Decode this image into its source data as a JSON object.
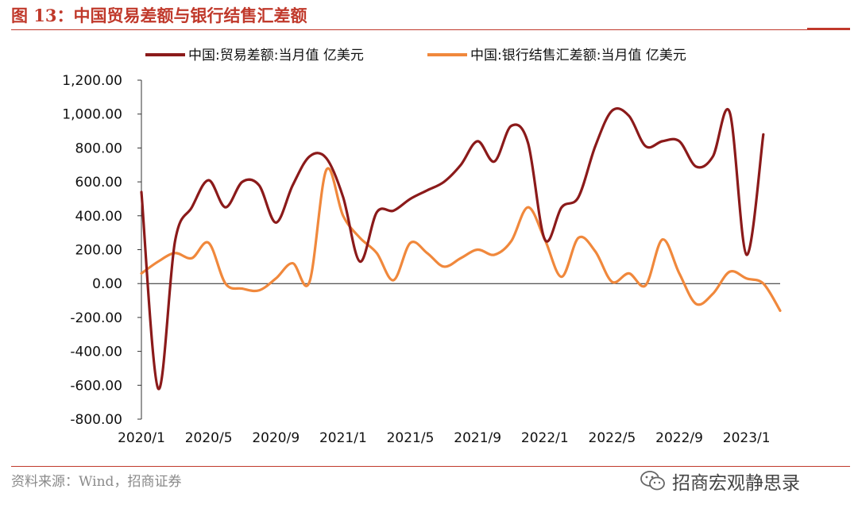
{
  "header": {
    "title": "图 13：中国贸易差额与银行结售汇差额"
  },
  "footer": {
    "source": "资料来源：Wind，招商证券",
    "watermark": "招商宏观静思录"
  },
  "colors": {
    "accent": "#c0392b",
    "series_trade": "#8b1a1a",
    "series_fx": "#f0883c"
  },
  "chart_data": {
    "type": "line",
    "title": "",
    "xlabel": "",
    "ylabel": "",
    "ylim": [
      -800,
      1200
    ],
    "y_ticks": [
      "1,200.00",
      "1,000.00",
      "800.00",
      "600.00",
      "400.00",
      "200.00",
      "0.00",
      "-200.00",
      "-400.00",
      "-600.00",
      "-800.00"
    ],
    "x_ticks": [
      "2020/1",
      "2020/5",
      "2020/9",
      "2021/1",
      "2021/5",
      "2021/9",
      "2022/1",
      "2022/5",
      "2022/9",
      "2023/1"
    ],
    "x": [
      "2020/1",
      "2020/2",
      "2020/3",
      "2020/4",
      "2020/5",
      "2020/6",
      "2020/7",
      "2020/8",
      "2020/9",
      "2020/10",
      "2020/11",
      "2020/12",
      "2021/1",
      "2021/2",
      "2021/3",
      "2021/4",
      "2021/5",
      "2021/6",
      "2021/7",
      "2021/8",
      "2021/9",
      "2021/10",
      "2021/11",
      "2021/12",
      "2022/1",
      "2022/2",
      "2022/3",
      "2022/4",
      "2022/5",
      "2022/6",
      "2022/7",
      "2022/8",
      "2022/9",
      "2022/10",
      "2022/11",
      "2022/12",
      "2023/1",
      "2023/2",
      "2023/3"
    ],
    "legend_position": "top",
    "grid": false,
    "series": [
      {
        "name": "中国:贸易差额:当月值 亿美元",
        "values": [
          540,
          -620,
          250,
          450,
          610,
          450,
          600,
          580,
          360,
          580,
          750,
          740,
          510,
          130,
          420,
          430,
          500,
          550,
          600,
          700,
          840,
          720,
          930,
          830,
          260,
          450,
          510,
          810,
          1020,
          990,
          810,
          840,
          840,
          690,
          750,
          1010,
          170,
          880,
          null
        ]
      },
      {
        "name": "中国:银行结售汇差额:当月值 亿美元",
        "values": [
          60,
          130,
          180,
          150,
          240,
          0,
          -30,
          -40,
          30,
          120,
          10,
          670,
          400,
          270,
          180,
          20,
          240,
          180,
          100,
          150,
          200,
          170,
          250,
          450,
          260,
          40,
          270,
          190,
          10,
          60,
          -10,
          260,
          60,
          -120,
          -60,
          70,
          30,
          0,
          -160
        ]
      }
    ]
  }
}
